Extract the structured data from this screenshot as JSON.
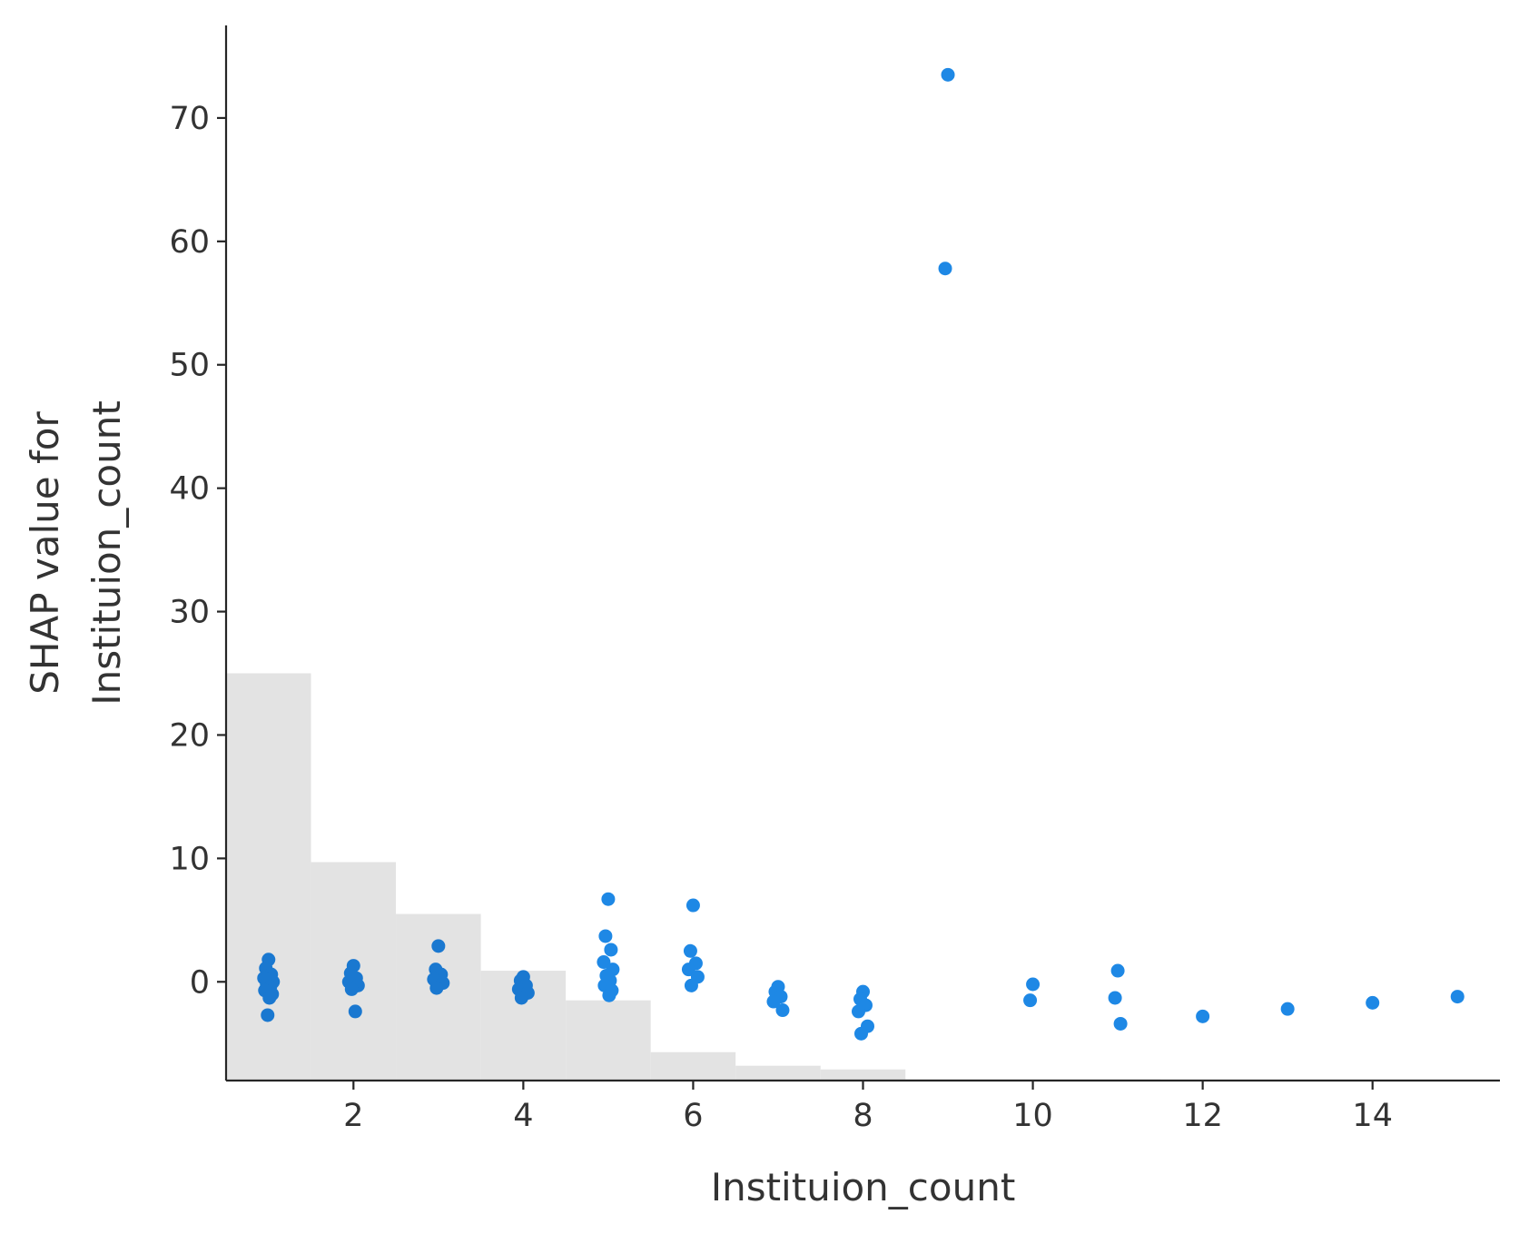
{
  "chart_data": {
    "type": "scatter",
    "title": "",
    "xlabel": "Instituion_count",
    "ylabel_lines": [
      "SHAP value for",
      "Instituion_count"
    ],
    "xlim": [
      0.5,
      15.5
    ],
    "ylim": [
      -8,
      77.5
    ],
    "x_ticks": [
      2,
      4,
      6,
      8,
      10,
      12,
      14
    ],
    "y_ticks": [
      0,
      10,
      20,
      30,
      40,
      50,
      60,
      70
    ],
    "grid": false,
    "point_color": "#1e88e5",
    "dense_point_color": "#1a78d0",
    "histogram_color": "#e3e3e3",
    "histogram": {
      "description": "background feature-value distribution",
      "bins": [
        {
          "from": 0.5,
          "to": 1.5,
          "top_y": 25.0
        },
        {
          "from": 1.5,
          "to": 2.5,
          "top_y": 9.7
        },
        {
          "from": 2.5,
          "to": 3.5,
          "top_y": 5.5
        },
        {
          "from": 3.5,
          "to": 4.5,
          "top_y": 0.9
        },
        {
          "from": 4.5,
          "to": 5.5,
          "top_y": -1.5
        },
        {
          "from": 5.5,
          "to": 6.5,
          "top_y": -5.7
        },
        {
          "from": 6.5,
          "to": 7.5,
          "top_y": -6.8
        },
        {
          "from": 7.5,
          "to": 8.5,
          "top_y": -7.1
        },
        {
          "from": 8.5,
          "to": 9.5,
          "top_y": -7.9
        },
        {
          "from": 9.5,
          "to": 10.5,
          "top_y": -7.9
        },
        {
          "from": 10.5,
          "to": 11.5,
          "top_y": -7.9
        }
      ]
    },
    "points": [
      {
        "x": 1.0,
        "y": 1.8
      },
      {
        "x": 1.0,
        "y": 1.1
      },
      {
        "x": 1.0,
        "y": 0.6
      },
      {
        "x": 1.0,
        "y": 0.3
      },
      {
        "x": 1.0,
        "y": 0.0
      },
      {
        "x": 1.0,
        "y": -0.2
      },
      {
        "x": 1.0,
        "y": -0.4
      },
      {
        "x": 1.0,
        "y": -0.7
      },
      {
        "x": 1.0,
        "y": -1.0
      },
      {
        "x": 1.0,
        "y": -1.3
      },
      {
        "x": 1.0,
        "y": -2.7
      },
      {
        "x": 2.0,
        "y": 1.3
      },
      {
        "x": 2.0,
        "y": 0.7
      },
      {
        "x": 2.0,
        "y": 0.3
      },
      {
        "x": 2.0,
        "y": 0.0
      },
      {
        "x": 2.0,
        "y": -0.3
      },
      {
        "x": 2.0,
        "y": -0.6
      },
      {
        "x": 2.0,
        "y": -2.4
      },
      {
        "x": 3.0,
        "y": 2.9
      },
      {
        "x": 3.0,
        "y": 1.0
      },
      {
        "x": 3.0,
        "y": 0.6
      },
      {
        "x": 3.0,
        "y": 0.2
      },
      {
        "x": 3.0,
        "y": -0.1
      },
      {
        "x": 3.0,
        "y": -0.5
      },
      {
        "x": 4.0,
        "y": 0.4
      },
      {
        "x": 4.0,
        "y": 0.1
      },
      {
        "x": 4.0,
        "y": -0.3
      },
      {
        "x": 4.0,
        "y": -0.6
      },
      {
        "x": 4.0,
        "y": -0.9
      },
      {
        "x": 4.0,
        "y": -1.3
      },
      {
        "x": 5.0,
        "y": 6.7
      },
      {
        "x": 5.0,
        "y": 3.7
      },
      {
        "x": 5.0,
        "y": 2.6
      },
      {
        "x": 5.0,
        "y": 1.6
      },
      {
        "x": 5.0,
        "y": 1.0
      },
      {
        "x": 5.0,
        "y": 0.5
      },
      {
        "x": 5.0,
        "y": 0.1
      },
      {
        "x": 5.0,
        "y": -0.3
      },
      {
        "x": 5.0,
        "y": -0.7
      },
      {
        "x": 5.0,
        "y": -1.1
      },
      {
        "x": 6.0,
        "y": 6.2
      },
      {
        "x": 6.0,
        "y": 2.5
      },
      {
        "x": 6.0,
        "y": 1.5
      },
      {
        "x": 6.0,
        "y": 1.0
      },
      {
        "x": 6.0,
        "y": 0.4
      },
      {
        "x": 6.0,
        "y": -0.3
      },
      {
        "x": 7.0,
        "y": -0.4
      },
      {
        "x": 7.0,
        "y": -0.8
      },
      {
        "x": 7.0,
        "y": -1.2
      },
      {
        "x": 7.0,
        "y": -1.6
      },
      {
        "x": 7.0,
        "y": -2.3
      },
      {
        "x": 8.0,
        "y": -0.8
      },
      {
        "x": 8.0,
        "y": -1.4
      },
      {
        "x": 8.0,
        "y": -1.9
      },
      {
        "x": 8.0,
        "y": -2.4
      },
      {
        "x": 8.0,
        "y": -3.6
      },
      {
        "x": 8.0,
        "y": -4.2
      },
      {
        "x": 9.0,
        "y": 73.5
      },
      {
        "x": 9.0,
        "y": 57.8
      },
      {
        "x": 10.0,
        "y": -0.2
      },
      {
        "x": 10.0,
        "y": -1.5
      },
      {
        "x": 11.0,
        "y": 0.9
      },
      {
        "x": 11.0,
        "y": -1.3
      },
      {
        "x": 11.0,
        "y": -3.4
      },
      {
        "x": 12.0,
        "y": -2.8
      },
      {
        "x": 13.0,
        "y": -2.2
      },
      {
        "x": 14.0,
        "y": -1.7
      },
      {
        "x": 15.0,
        "y": -1.2
      }
    ]
  }
}
